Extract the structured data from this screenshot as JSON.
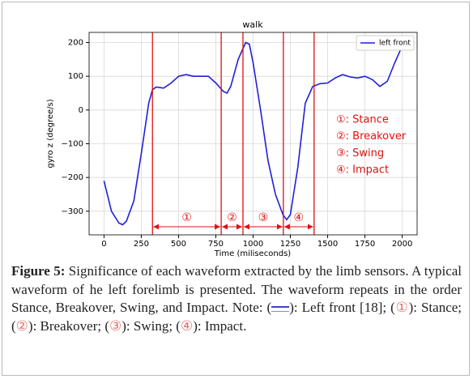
{
  "chart_data": {
    "type": "line",
    "title": "walk",
    "x_label": "Time (miliseconds)",
    "y_label": "gyro z (degree/s)",
    "series": [
      {
        "name": "left front",
        "color": "#1f1fdc",
        "x": [
          0,
          50,
          100,
          125,
          150,
          200,
          250,
          300,
          325,
          350,
          400,
          450,
          500,
          550,
          600,
          650,
          700,
          750,
          800,
          825,
          850,
          900,
          950,
          975,
          1000,
          1050,
          1100,
          1150,
          1200,
          1225,
          1250,
          1300,
          1350,
          1400,
          1450,
          1500,
          1550,
          1600,
          1650,
          1700,
          1750,
          1800,
          1850,
          1900,
          1950,
          2000
        ],
        "values": [
          -210,
          -300,
          -335,
          -340,
          -330,
          -270,
          -130,
          20,
          60,
          68,
          65,
          80,
          100,
          105,
          100,
          100,
          100,
          80,
          55,
          50,
          70,
          150,
          200,
          195,
          140,
          0,
          -150,
          -250,
          -310,
          -325,
          -310,
          -170,
          20,
          70,
          78,
          80,
          95,
          105,
          98,
          95,
          100,
          90,
          70,
          85,
          140,
          190
        ]
      }
    ],
    "xlim": [
      -100,
      2100
    ],
    "xticks": [
      0,
      250,
      500,
      750,
      1000,
      1250,
      1500,
      1750,
      2000
    ],
    "ylim": [
      -370,
      230
    ],
    "yticks": [
      {
        "value": -300,
        "label": "−300"
      },
      {
        "value": -200,
        "label": "−200"
      },
      {
        "value": -100,
        "label": "−100"
      },
      0,
      100,
      200
    ],
    "grid": true,
    "legend": "upper right",
    "phase_color": "#e01010",
    "phase_boundaries": [
      325,
      786,
      932,
      1203,
      1409
    ],
    "phase_labels": [
      "①",
      "②",
      "③",
      "④"
    ],
    "phase_legend": [
      "①: Stance",
      "②: Breakover",
      "③: Swing",
      "④: Impact"
    ]
  },
  "caption": {
    "label": "Figure 5:",
    "text": "Significance of each waveform extracted by the limb sensors. A typical waveform of he left forelimb is presented. The waveform repeats in the order Stance, Breakover, Swing, and Impact.",
    "note_parts": [
      "Note: (",
      "): Left front [18]; (",
      "): Stance; (",
      "): Breakover; (",
      "): Swing; (",
      "): Impact."
    ]
  }
}
